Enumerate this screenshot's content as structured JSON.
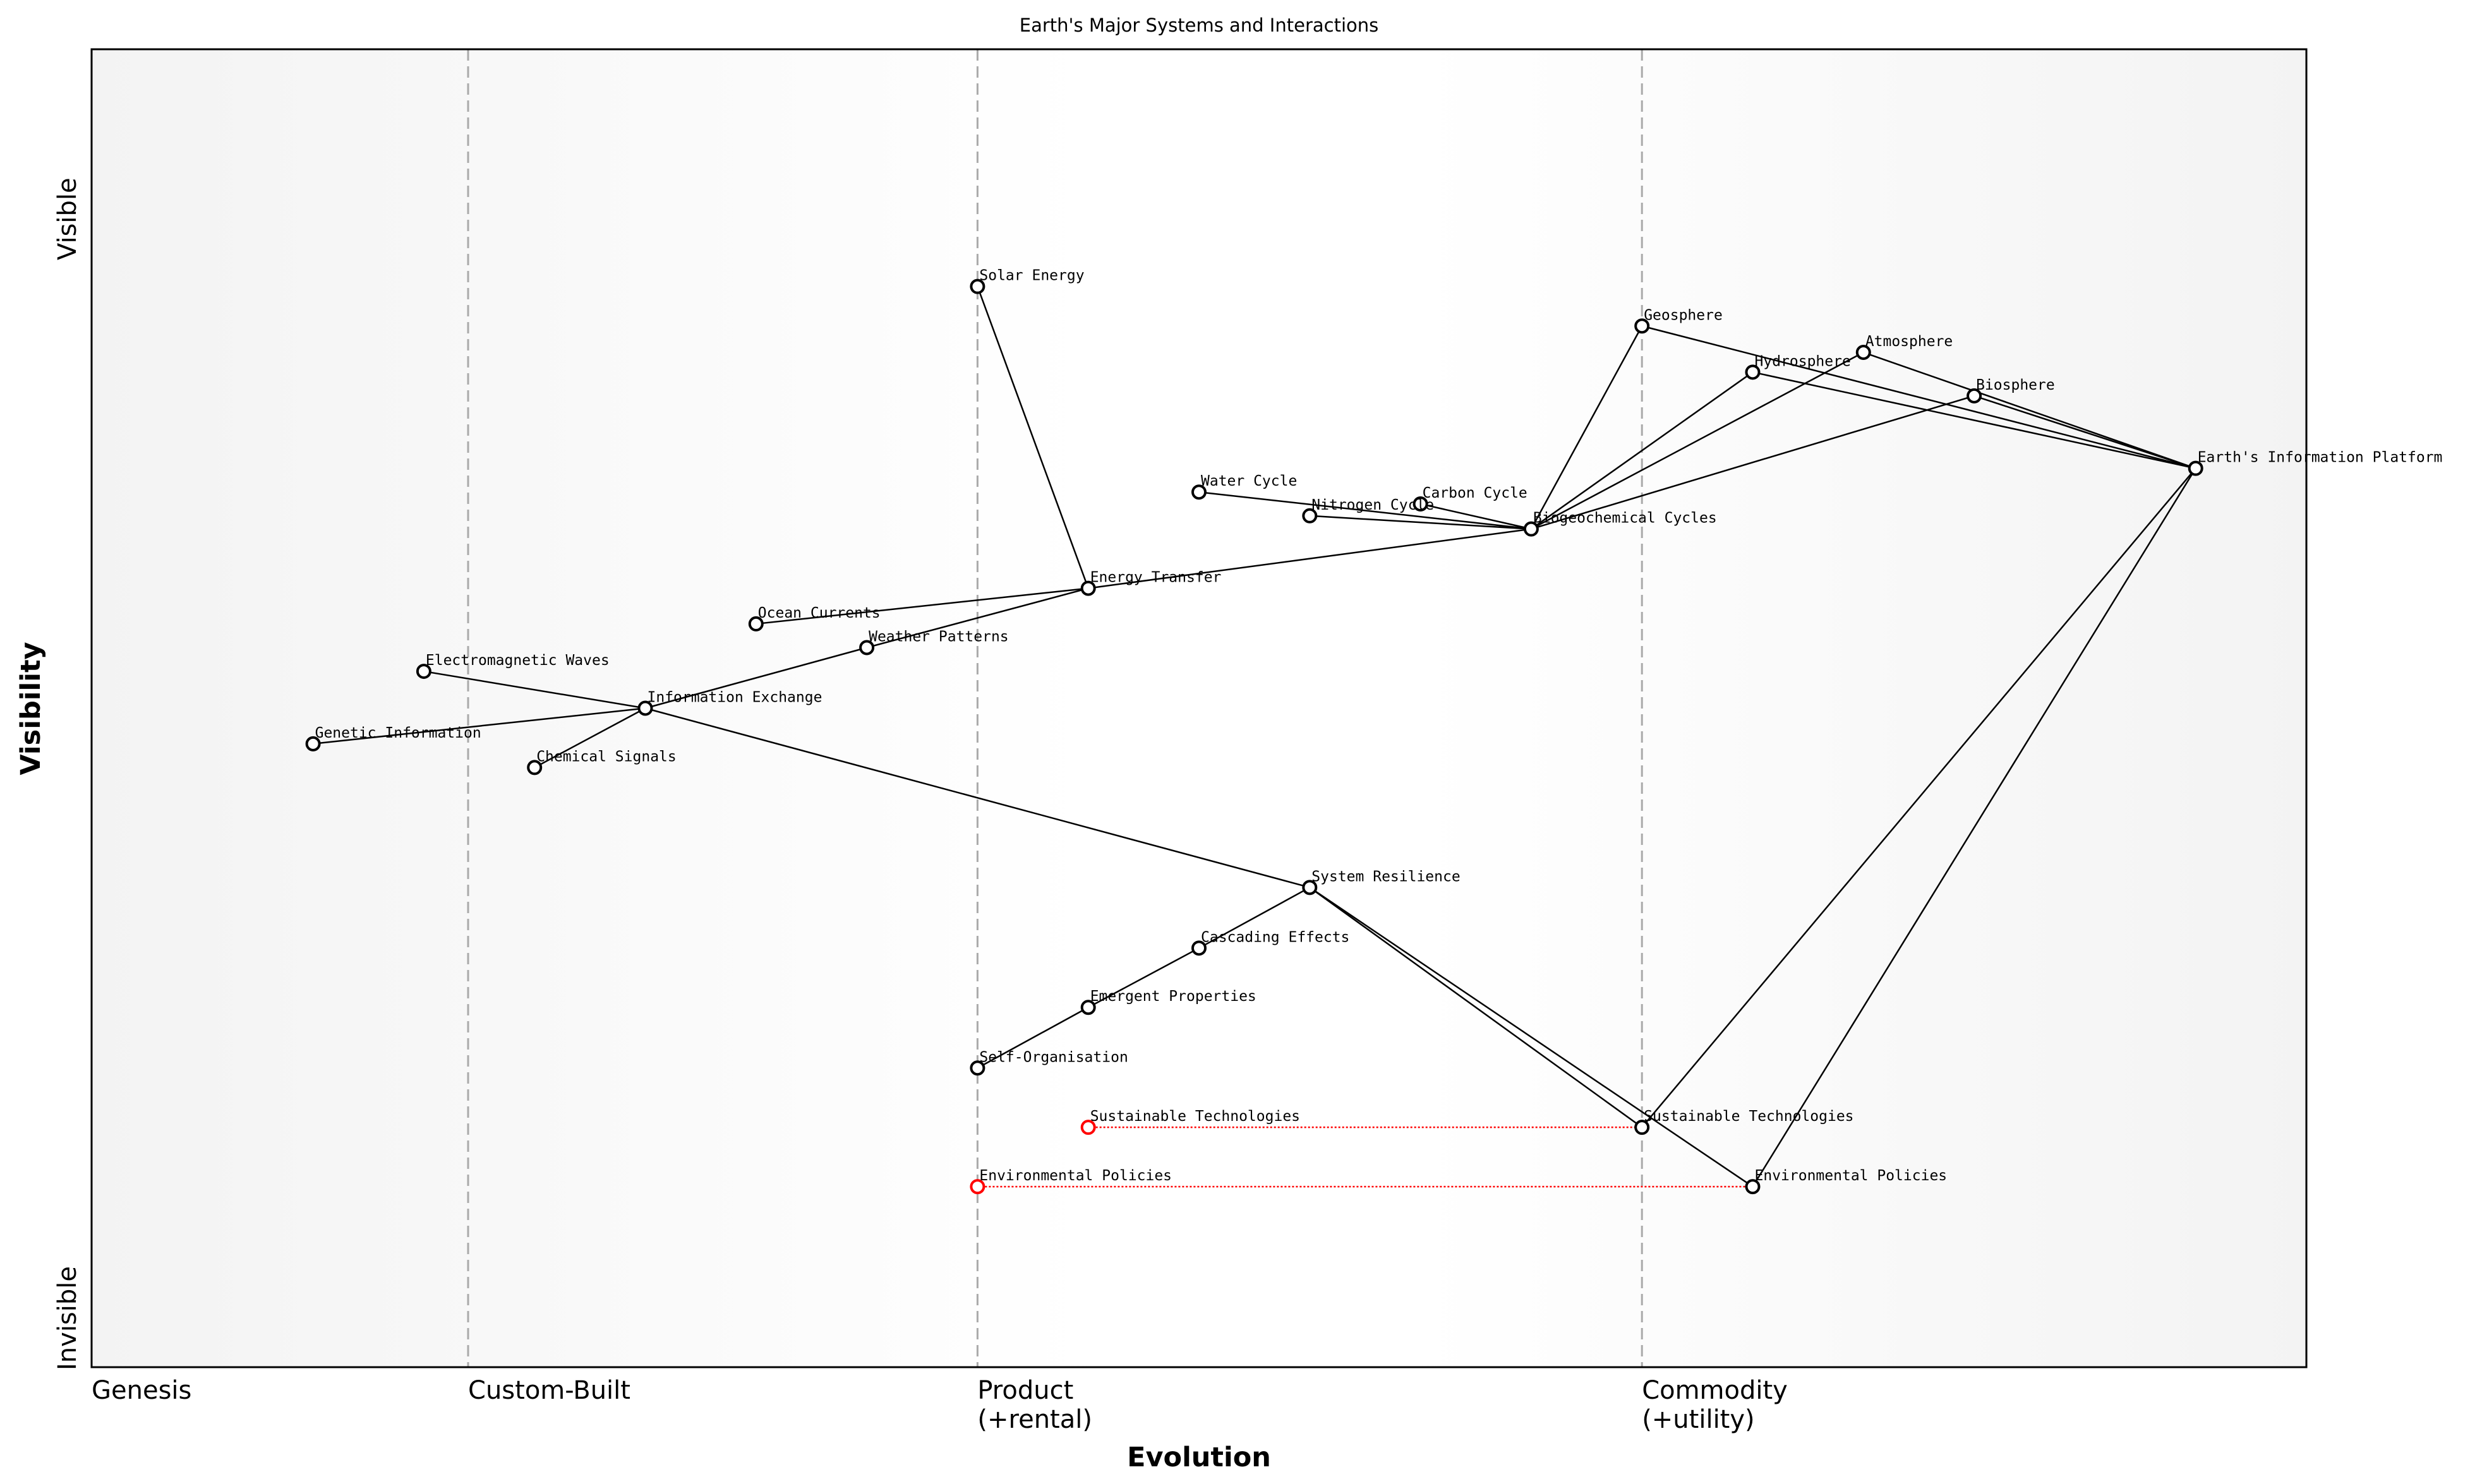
{
  "chart_data": {
    "type": "wardley-map",
    "title": "Earth's Major Systems and Interactions",
    "xlabel": "Evolution",
    "ylabel": "Visibility",
    "xlim": [
      0,
      1
    ],
    "ylim": [
      0,
      1
    ],
    "y_ticks": [
      {
        "label": "Invisible",
        "value": 0
      },
      {
        "label": "Visible",
        "value": 1
      }
    ],
    "stages": [
      {
        "label": "Genesis",
        "value": 0.0
      },
      {
        "label": "Custom-Built",
        "value": 0.17
      },
      {
        "label": "Product\n(+rental)",
        "value": 0.4
      },
      {
        "label": "Commodity\n(+utility)",
        "value": 0.7
      }
    ],
    "colors": {
      "component": "#000000",
      "evolving": "#ff0000",
      "link": "#000000",
      "evolve_link": "#ff0000",
      "stage_line": "#aaaaaa"
    },
    "nodes": [
      {
        "id": "solar",
        "name": "Solar Energy",
        "x": 0.4,
        "y": 0.82
      },
      {
        "id": "geo",
        "name": "Geosphere",
        "x": 0.7,
        "y": 0.79
      },
      {
        "id": "atmo",
        "name": "Atmosphere",
        "x": 0.8,
        "y": 0.77
      },
      {
        "id": "hydro",
        "name": "Hydrosphere",
        "x": 0.75,
        "y": 0.755
      },
      {
        "id": "bio",
        "name": "Biosphere",
        "x": 0.85,
        "y": 0.737
      },
      {
        "id": "eip",
        "name": "Earth's Information Platform",
        "x": 0.95,
        "y": 0.682
      },
      {
        "id": "water",
        "name": "Water Cycle",
        "x": 0.5,
        "y": 0.664
      },
      {
        "id": "carbon",
        "name": "Carbon Cycle",
        "x": 0.6,
        "y": 0.655
      },
      {
        "id": "nitrogen",
        "name": "Nitrogen Cycle",
        "x": 0.55,
        "y": 0.646
      },
      {
        "id": "biogeo",
        "name": "Biogeochemical Cycles",
        "x": 0.65,
        "y": 0.636
      },
      {
        "id": "energy",
        "name": "Energy Transfer",
        "x": 0.45,
        "y": 0.591
      },
      {
        "id": "ocean",
        "name": "Ocean Currents",
        "x": 0.3,
        "y": 0.564
      },
      {
        "id": "weather",
        "name": "Weather Patterns",
        "x": 0.35,
        "y": 0.546
      },
      {
        "id": "em",
        "name": "Electromagnetic Waves",
        "x": 0.15,
        "y": 0.528
      },
      {
        "id": "info",
        "name": "Information Exchange",
        "x": 0.25,
        "y": 0.5
      },
      {
        "id": "genetic",
        "name": "Genetic Information",
        "x": 0.1,
        "y": 0.473
      },
      {
        "id": "chem",
        "name": "Chemical Signals",
        "x": 0.2,
        "y": 0.455
      },
      {
        "id": "resil",
        "name": "System Resilience",
        "x": 0.55,
        "y": 0.364
      },
      {
        "id": "casc",
        "name": "Cascading Effects",
        "x": 0.5,
        "y": 0.318
      },
      {
        "id": "emerg",
        "name": "Emergent Properties",
        "x": 0.45,
        "y": 0.273
      },
      {
        "id": "selforg",
        "name": "Self-Organisation",
        "x": 0.4,
        "y": 0.227
      },
      {
        "id": "sust_old",
        "name": "Sustainable Technologies",
        "x": 0.45,
        "y": 0.182,
        "evolving": true
      },
      {
        "id": "sust",
        "name": "Sustainable Technologies",
        "x": 0.7,
        "y": 0.182
      },
      {
        "id": "env_old",
        "name": "Environmental Policies",
        "x": 0.4,
        "y": 0.137,
        "evolving": true
      },
      {
        "id": "env",
        "name": "Environmental Policies",
        "x": 0.75,
        "y": 0.137
      }
    ],
    "links": [
      [
        "solar",
        "energy"
      ],
      [
        "geo",
        "eip"
      ],
      [
        "geo",
        "biogeo"
      ],
      [
        "hydro",
        "eip"
      ],
      [
        "hydro",
        "biogeo"
      ],
      [
        "atmo",
        "eip"
      ],
      [
        "atmo",
        "biogeo"
      ],
      [
        "bio",
        "eip"
      ],
      [
        "bio",
        "biogeo"
      ],
      [
        "water",
        "biogeo"
      ],
      [
        "nitrogen",
        "biogeo"
      ],
      [
        "carbon",
        "biogeo"
      ],
      [
        "biogeo",
        "energy"
      ],
      [
        "energy",
        "ocean"
      ],
      [
        "energy",
        "weather"
      ],
      [
        "weather",
        "info"
      ],
      [
        "em",
        "info"
      ],
      [
        "genetic",
        "info"
      ],
      [
        "chem",
        "info"
      ],
      [
        "info",
        "resil"
      ],
      [
        "resil",
        "casc"
      ],
      [
        "casc",
        "emerg"
      ],
      [
        "emerg",
        "selforg"
      ],
      [
        "resil",
        "sust"
      ],
      [
        "resil",
        "env"
      ],
      [
        "eip",
        "sust"
      ],
      [
        "eip",
        "env"
      ]
    ],
    "evolve_links": [
      [
        "sust_old",
        "sust"
      ],
      [
        "env_old",
        "env"
      ]
    ]
  }
}
